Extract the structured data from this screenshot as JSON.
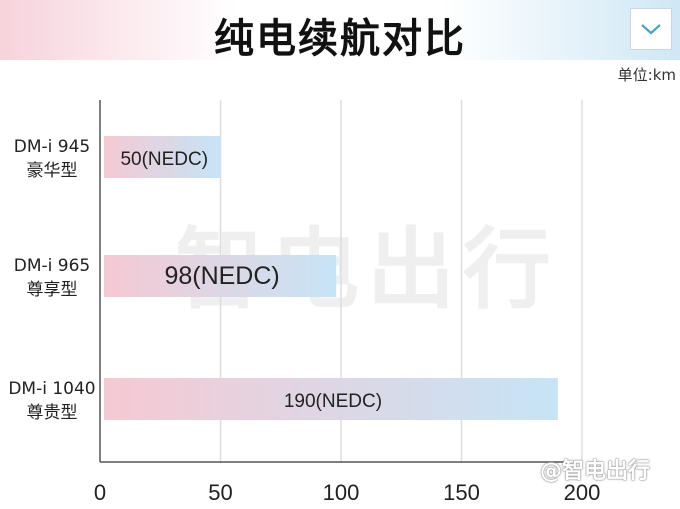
{
  "header": {
    "title": "纯电续航对比",
    "collapse_icon": "chevron-down-icon"
  },
  "unit_label": "单位:km",
  "watermark": "智电出行",
  "logo": "@智电出行",
  "colors": {
    "bar_start": "#f5c9d3",
    "bar_end": "#c6e4f6",
    "grid": "#dddddd",
    "axis": "#555555"
  },
  "chart_data": {
    "type": "bar",
    "orientation": "horizontal",
    "title": "纯电续航对比",
    "unit": "km",
    "categories": [
      {
        "line1": "DM-i 945",
        "line2": "豪华型"
      },
      {
        "line1": "DM-i 965",
        "line2": "尊享型"
      },
      {
        "line1": "DM-i 1040",
        "line2": "尊贵型"
      }
    ],
    "values": [
      50,
      98,
      190
    ],
    "data_labels": [
      "50(NEDC)",
      "98(NEDC)",
      "190(NEDC)"
    ],
    "xlim": [
      0,
      200
    ],
    "x_ticks": [
      0,
      50,
      100,
      150,
      200
    ],
    "grid": true
  }
}
